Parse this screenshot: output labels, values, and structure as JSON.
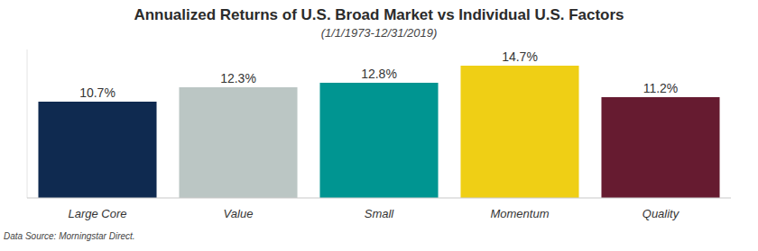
{
  "chart_data": {
    "type": "bar",
    "title": "Annualized Returns of U.S. Broad Market vs Individual U.S. Factors",
    "subtitle": "(1/1/1973-12/31/2019)",
    "source": "Data Source: Morningstar Direct.",
    "categories": [
      "Large Core",
      "Value",
      "Small",
      "Momentum",
      "Quality"
    ],
    "values": [
      10.7,
      12.3,
      12.8,
      14.7,
      11.2
    ],
    "value_labels": [
      "10.7%",
      "12.3%",
      "12.8%",
      "14.7%",
      "11.2%"
    ],
    "colors": [
      "#0f2a50",
      "#bbc6c4",
      "#009591",
      "#efcf15",
      "#661b30"
    ],
    "ylim": [
      0,
      16.5
    ],
    "grid": false,
    "data_labels": true,
    "tick_labels": "x"
  }
}
